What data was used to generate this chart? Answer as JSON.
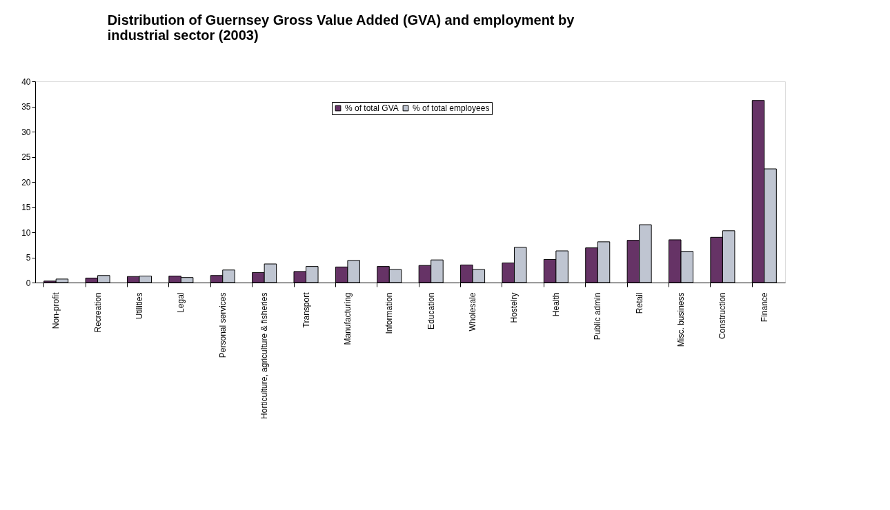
{
  "chart_data": {
    "type": "bar",
    "title": "Distribution of Guernsey Gross Value Added (GVA) and employment by industrial sector (2003)",
    "categories": [
      "Non-profit",
      "Recreation",
      "Utilities",
      "Legal",
      "Personal services",
      "Horticulture, agriculture & fisheries",
      "Transport",
      "Manufacturing",
      "Information",
      "Education",
      "Wholesale",
      "Hostelry",
      "Health",
      "Public admin",
      "Retail",
      "Misc. business",
      "Construction",
      "Finance"
    ],
    "series": [
      {
        "name": "% of total GVA",
        "color": "#663366",
        "values": [
          0.3,
          0.9,
          1.2,
          1.3,
          1.4,
          2.0,
          2.2,
          3.1,
          3.2,
          3.4,
          3.5,
          3.9,
          4.6,
          6.9,
          8.4,
          8.5,
          9.0,
          36.2
        ]
      },
      {
        "name": "% of total employees",
        "color": "#bfc5d1",
        "values": [
          0.7,
          1.4,
          1.3,
          1.0,
          2.5,
          3.7,
          3.2,
          4.4,
          2.6,
          4.5,
          2.6,
          7.0,
          6.3,
          8.1,
          11.5,
          6.2,
          10.3,
          22.6
        ]
      }
    ],
    "ylim": [
      0,
      40
    ],
    "yticks": [
      0,
      5,
      10,
      15,
      20,
      25,
      30,
      35,
      40
    ],
    "grid": false,
    "legend": "top"
  }
}
